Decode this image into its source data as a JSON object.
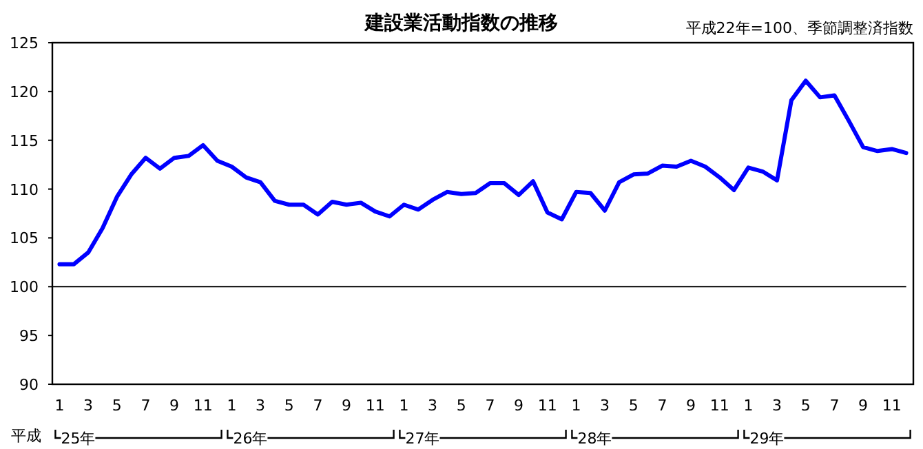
{
  "chart_data": {
    "type": "line",
    "title": "建設業活動指数の推移",
    "subtitle": "平成22年=100、季節調整済指数",
    "xlabel": "平成",
    "categories": [
      "1",
      null,
      "3",
      null,
      "5",
      null,
      "7",
      null,
      "9",
      null,
      "11",
      null,
      "1",
      null,
      "3",
      null,
      "5",
      null,
      "7",
      null,
      "9",
      null,
      "11",
      null,
      "1",
      null,
      "3",
      null,
      "5",
      null,
      "7",
      null,
      "9",
      null,
      "11",
      null,
      "1",
      null,
      "3",
      null,
      "5",
      null,
      "7",
      null,
      "9",
      null,
      "11",
      null,
      "1",
      null,
      "3",
      null,
      "5",
      null,
      "7",
      null,
      "9",
      null,
      "11",
      null
    ],
    "series": [
      {
        "color": "#0000ff",
        "values": [
          102.3,
          102.3,
          103.5,
          106,
          109.2,
          111.5,
          113.2,
          112.1,
          113.2,
          113.4,
          114.5,
          112.9,
          112.3,
          111.2,
          110.7,
          108.8,
          108.4,
          108.4,
          107.4,
          108.7,
          108.4,
          108.6,
          107.7,
          107.2,
          108.4,
          107.9,
          108.9,
          109.7,
          109.5,
          109.6,
          110.6,
          110.6,
          109.4,
          110.8,
          107.6,
          106.9,
          109.7,
          109.6,
          107.8,
          110.7,
          111.5,
          111.6,
          112.4,
          112.3,
          112.9,
          112.3,
          111.2,
          109.9,
          112.2,
          111.8,
          110.9,
          119.1,
          121.1,
          119.4,
          119.6,
          117,
          114.3,
          113.9,
          114.1,
          113.7
        ]
      }
    ],
    "ylim": [
      90,
      125
    ],
    "yticks": [
      90,
      95,
      100,
      105,
      110,
      115,
      120,
      125
    ],
    "ref_lines": [
      {
        "axis": "y",
        "value": 100,
        "color": "#000000"
      }
    ],
    "annotations": [
      "25年",
      "26年",
      "27年",
      "28年",
      "29年"
    ],
    "marker": "none",
    "line_style": "solid",
    "grid": false
  }
}
